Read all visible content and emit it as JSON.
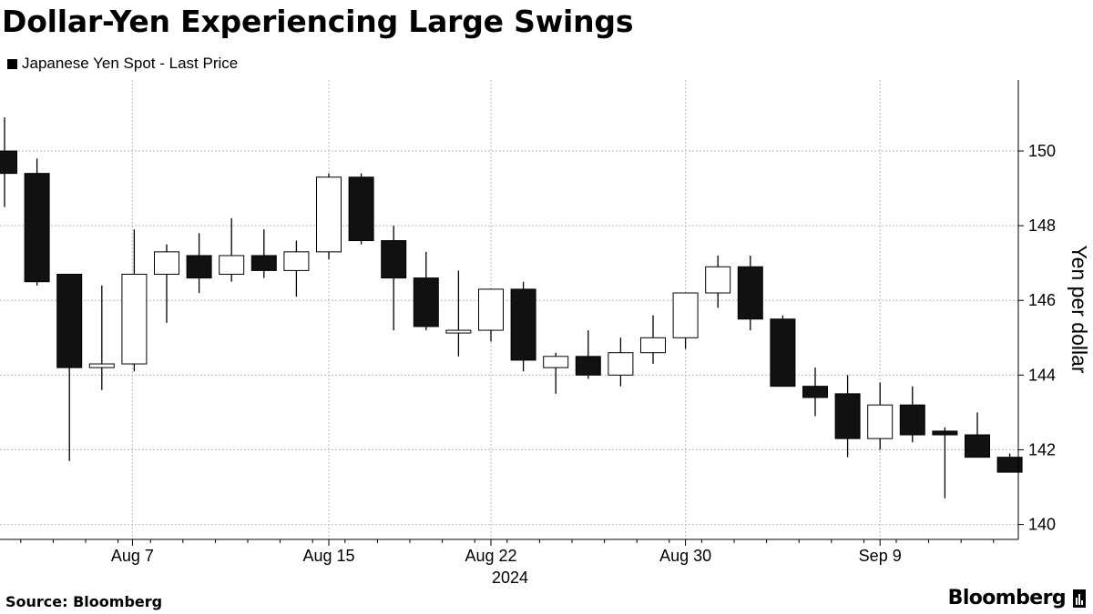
{
  "title": "Dollar-Yen Experiencing Large Swings",
  "source": "Source: Bloomberg",
  "brand": "Bloomberg",
  "chart_data": {
    "type": "candlestick",
    "title": "Dollar-Yen Experiencing Large Swings",
    "legend": {
      "label": "Japanese Yen Spot - Last Price",
      "position": "top-left"
    },
    "ylabel": "Yen per dollar",
    "xlabel": "",
    "year_label": "2024",
    "ylim": [
      139.6,
      151.9
    ],
    "y_ticks": [
      140,
      142,
      144,
      146,
      148,
      150
    ],
    "x_ticks": [
      {
        "label": "Aug 7",
        "date": "2024-08-07"
      },
      {
        "label": "Aug 15",
        "date": "2024-08-15"
      },
      {
        "label": "Aug 22",
        "date": "2024-08-22"
      },
      {
        "label": "Aug 30",
        "date": "2024-08-30"
      },
      {
        "label": "Sep 9",
        "date": "2024-09-09"
      }
    ],
    "grid": true,
    "colors": {
      "down": "#111111",
      "up": "#ffffff",
      "outline": "#000000",
      "grid": "#bbbbbb"
    },
    "candles": [
      {
        "date": "2024-08-01",
        "open": 150.0,
        "high": 150.9,
        "low": 148.5,
        "close": 149.4
      },
      {
        "date": "2024-08-02",
        "open": 149.4,
        "high": 149.8,
        "low": 146.4,
        "close": 146.5
      },
      {
        "date": "2024-08-05",
        "open": 146.7,
        "high": 146.7,
        "low": 141.7,
        "close": 144.2
      },
      {
        "date": "2024-08-06",
        "open": 144.2,
        "high": 146.4,
        "low": 143.6,
        "close": 144.3
      },
      {
        "date": "2024-08-07",
        "open": 144.3,
        "high": 147.9,
        "low": 144.1,
        "close": 146.7
      },
      {
        "date": "2024-08-08",
        "open": 146.7,
        "high": 147.5,
        "low": 145.4,
        "close": 147.3
      },
      {
        "date": "2024-08-09",
        "open": 147.2,
        "high": 147.8,
        "low": 146.2,
        "close": 146.6
      },
      {
        "date": "2024-08-12",
        "open": 146.7,
        "high": 148.2,
        "low": 146.5,
        "close": 147.2
      },
      {
        "date": "2024-08-13",
        "open": 147.2,
        "high": 147.9,
        "low": 146.6,
        "close": 146.8
      },
      {
        "date": "2024-08-14",
        "open": 146.8,
        "high": 147.6,
        "low": 146.1,
        "close": 147.3
      },
      {
        "date": "2024-08-15",
        "open": 147.3,
        "high": 149.4,
        "low": 147.1,
        "close": 149.3
      },
      {
        "date": "2024-08-16",
        "open": 149.3,
        "high": 149.4,
        "low": 147.5,
        "close": 147.6
      },
      {
        "date": "2024-08-19",
        "open": 147.6,
        "high": 148.0,
        "low": 145.2,
        "close": 146.6
      },
      {
        "date": "2024-08-20",
        "open": 146.6,
        "high": 147.3,
        "low": 145.2,
        "close": 145.3
      },
      {
        "date": "2024-08-21",
        "open": 145.2,
        "high": 146.8,
        "low": 144.5,
        "close": 145.2
      },
      {
        "date": "2024-08-22",
        "open": 145.2,
        "high": 146.3,
        "low": 144.9,
        "close": 146.3
      },
      {
        "date": "2024-08-23",
        "open": 146.3,
        "high": 146.5,
        "low": 144.1,
        "close": 144.4
      },
      {
        "date": "2024-08-26",
        "open": 144.2,
        "high": 144.6,
        "low": 143.5,
        "close": 144.5
      },
      {
        "date": "2024-08-27",
        "open": 144.5,
        "high": 145.2,
        "low": 143.9,
        "close": 144.0
      },
      {
        "date": "2024-08-28",
        "open": 144.0,
        "high": 145.0,
        "low": 143.7,
        "close": 144.6
      },
      {
        "date": "2024-08-29",
        "open": 144.6,
        "high": 145.6,
        "low": 144.3,
        "close": 145.0
      },
      {
        "date": "2024-08-30",
        "open": 145.0,
        "high": 146.2,
        "low": 144.7,
        "close": 146.2
      },
      {
        "date": "2024-09-02",
        "open": 146.2,
        "high": 147.2,
        "low": 145.8,
        "close": 146.9
      },
      {
        "date": "2024-09-03",
        "open": 146.9,
        "high": 147.2,
        "low": 145.2,
        "close": 145.5
      },
      {
        "date": "2024-09-04",
        "open": 145.5,
        "high": 145.6,
        "low": 143.7,
        "close": 143.7
      },
      {
        "date": "2024-09-05",
        "open": 143.7,
        "high": 144.2,
        "low": 142.9,
        "close": 143.4
      },
      {
        "date": "2024-09-06",
        "open": 143.5,
        "high": 144.0,
        "low": 141.8,
        "close": 142.3
      },
      {
        "date": "2024-09-09",
        "open": 142.3,
        "high": 143.8,
        "low": 142.0,
        "close": 143.2
      },
      {
        "date": "2024-09-10",
        "open": 143.2,
        "high": 143.7,
        "low": 142.2,
        "close": 142.4
      },
      {
        "date": "2024-09-11",
        "open": 142.5,
        "high": 142.6,
        "low": 140.7,
        "close": 142.4
      },
      {
        "date": "2024-09-12",
        "open": 142.4,
        "high": 143.0,
        "low": 141.8,
        "close": 141.8
      },
      {
        "date": "2024-09-13",
        "open": 141.8,
        "high": 141.9,
        "low": 141.4,
        "close": 141.4
      }
    ]
  }
}
